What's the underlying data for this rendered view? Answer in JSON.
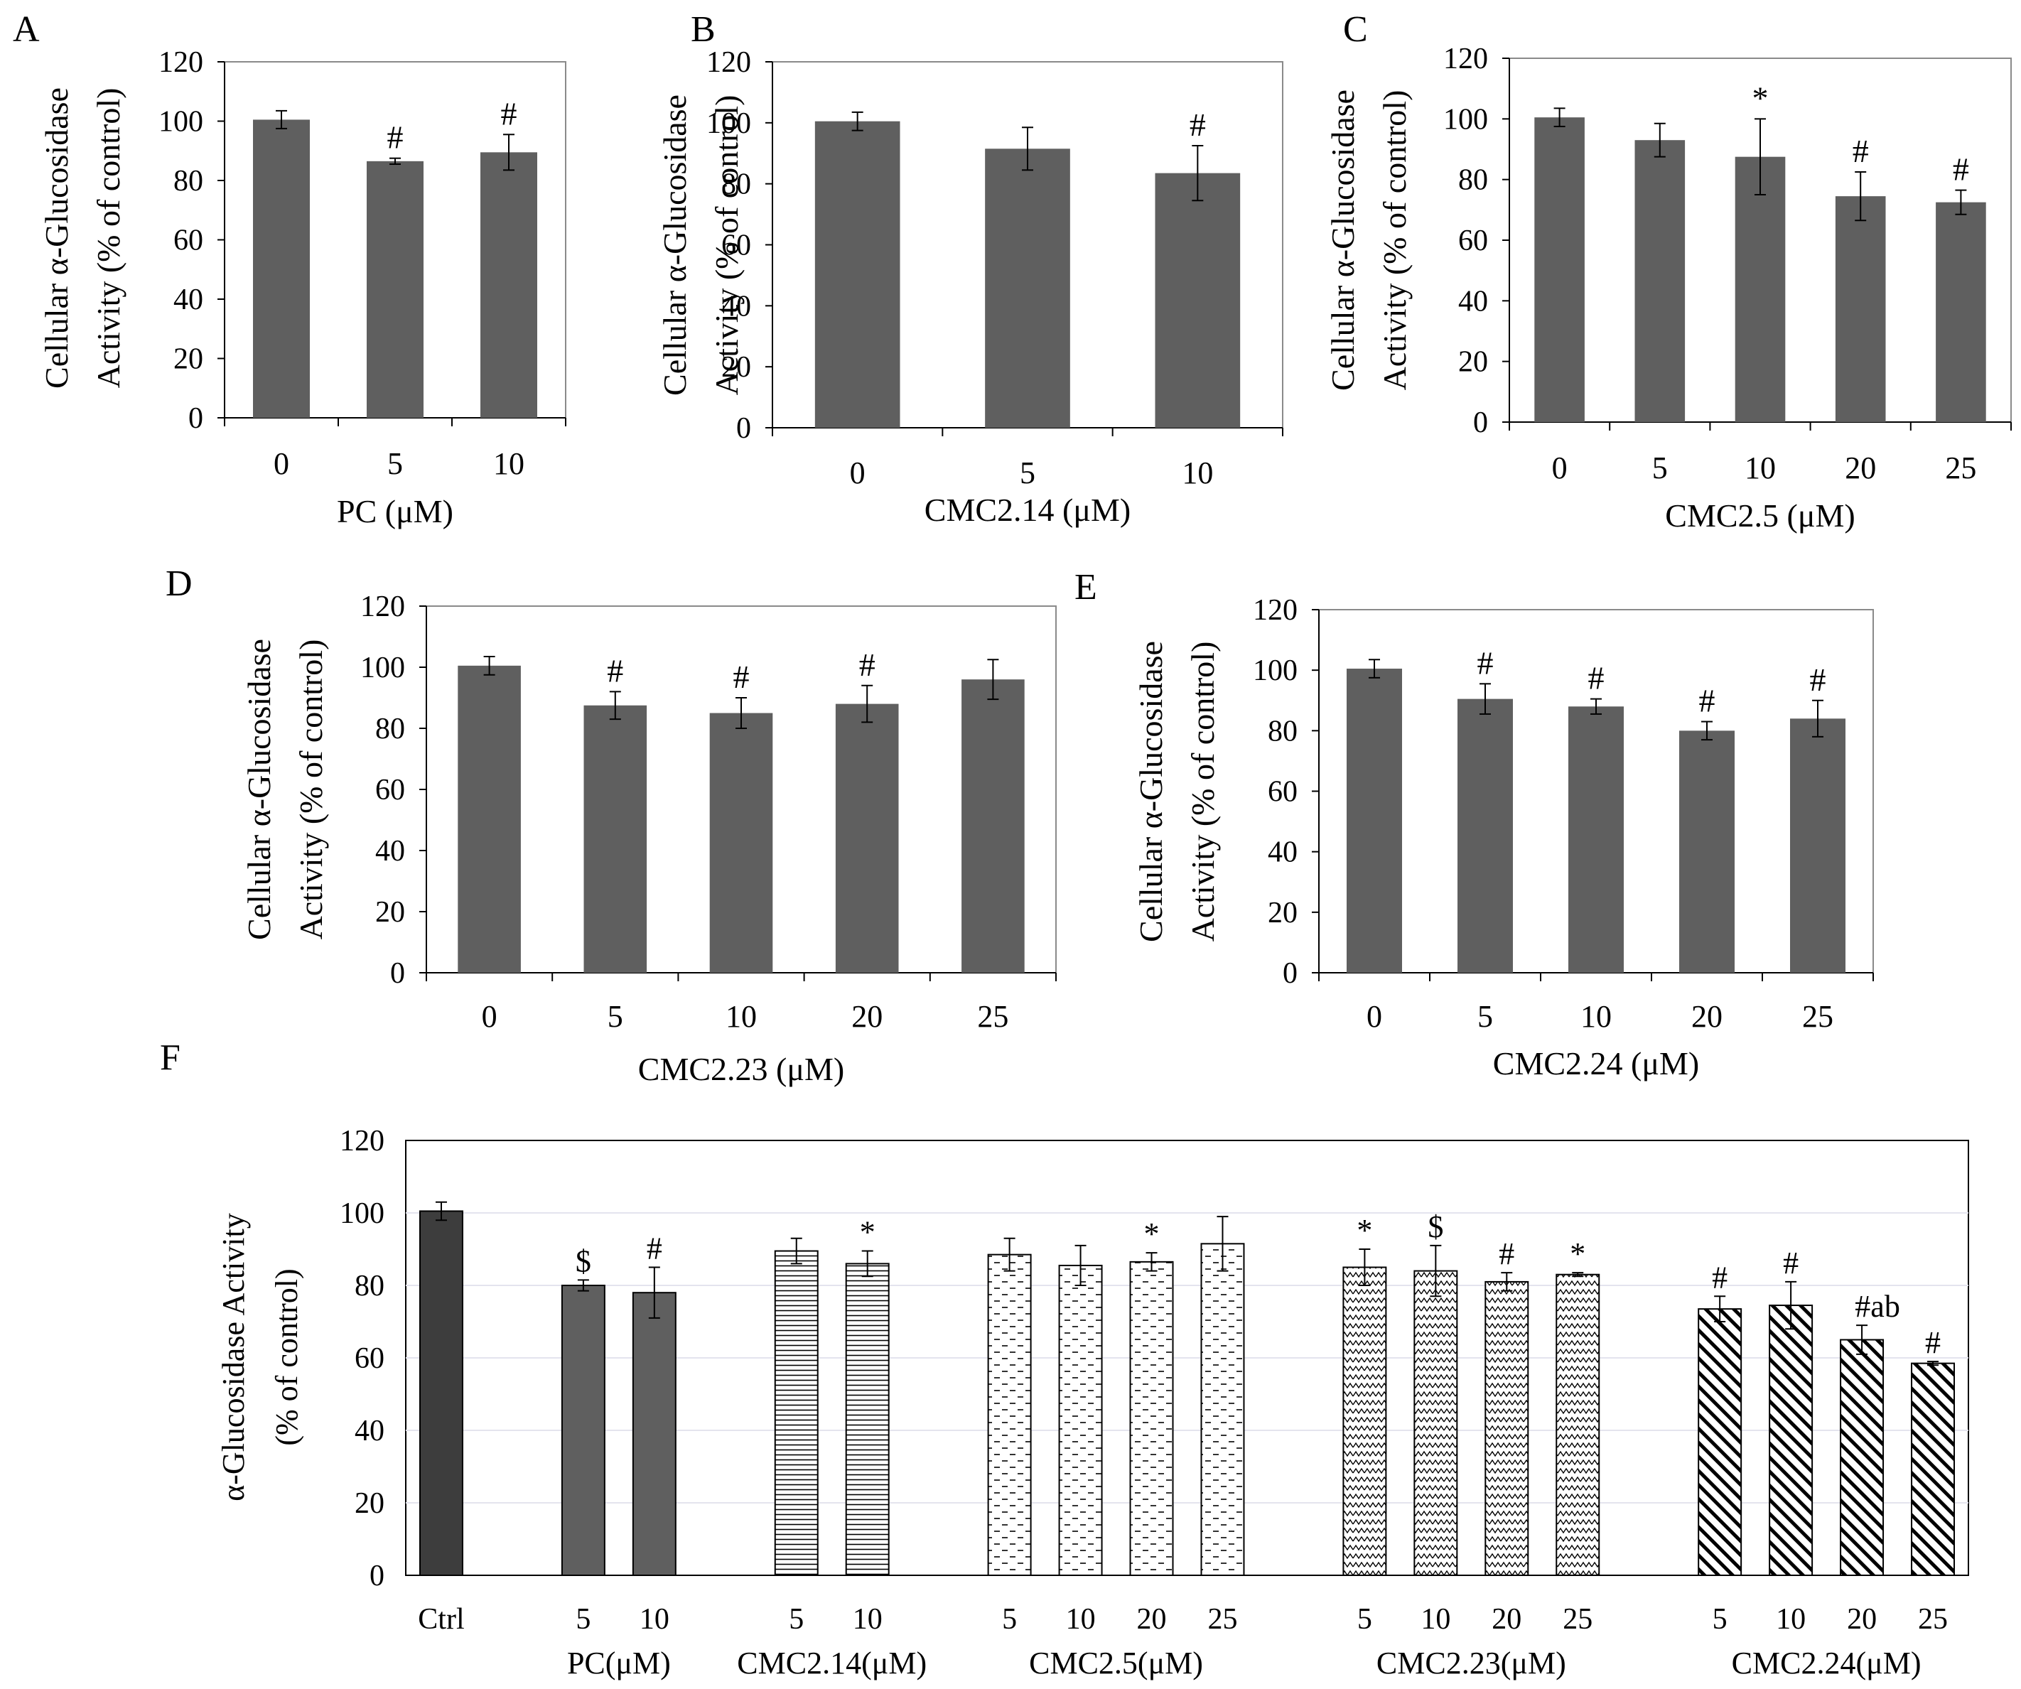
{
  "colors": {
    "bar": "#5f5f5f",
    "ctrl_bar": "#3d3d3d",
    "axis": "#000000",
    "frame": "#8a8a8a",
    "hatch": "#000000"
  },
  "chart_data": [
    {
      "id": "A",
      "type": "bar",
      "panel_label": "A",
      "xlabel": "PC (μM)",
      "ylabel_line1": "Cellular α-Glucosidase",
      "ylabel_line2": "Activity  (% of control)",
      "ylim": [
        0,
        120
      ],
      "yticks": [
        0,
        20,
        40,
        60,
        80,
        100,
        120
      ],
      "categories": [
        "0",
        "5",
        "10"
      ],
      "values": [
        100.5,
        86.5,
        89.5
      ],
      "errors": [
        3,
        1,
        6
      ],
      "annotations": [
        "",
        "#",
        "#"
      ]
    },
    {
      "id": "B",
      "type": "bar",
      "panel_label": "B",
      "xlabel": "CMC2.14 (μM)",
      "ylabel_line1": "Cellular α-Glucosidase",
      "ylabel_line2": "Activity  (% of control)",
      "ylim": [
        0,
        120
      ],
      "yticks": [
        0,
        20,
        40,
        60,
        80,
        100,
        120
      ],
      "categories": [
        "0",
        "5",
        "10"
      ],
      "values": [
        100.5,
        91.5,
        83.5
      ],
      "errors": [
        3,
        7,
        9
      ],
      "annotations": [
        "",
        "",
        "#"
      ]
    },
    {
      "id": "C",
      "type": "bar",
      "panel_label": "C",
      "xlabel": "CMC2.5 (μM)",
      "ylabel_line1": "Cellular α-Glucosidase",
      "ylabel_line2": "Activity  (% of control)",
      "ylim": [
        0,
        120
      ],
      "yticks": [
        0,
        20,
        40,
        60,
        80,
        100,
        120
      ],
      "categories": [
        "0",
        "5",
        "10",
        "20",
        "25"
      ],
      "values": [
        100.5,
        93,
        87.5,
        74.5,
        72.5
      ],
      "errors": [
        3,
        5.5,
        12.5,
        8,
        4
      ],
      "annotations": [
        "",
        "",
        "*",
        "#",
        "#"
      ]
    },
    {
      "id": "D",
      "type": "bar",
      "panel_label": "D",
      "xlabel": "CMC2.23 (μM)",
      "ylabel_line1": "Cellular α-Glucosidase",
      "ylabel_line2": "Activity  (% of control)",
      "ylim": [
        0,
        120
      ],
      "yticks": [
        0,
        20,
        40,
        60,
        80,
        100,
        120
      ],
      "categories": [
        "0",
        "5",
        "10",
        "20",
        "25"
      ],
      "values": [
        100.5,
        87.5,
        85,
        88,
        96
      ],
      "errors": [
        3,
        4.5,
        5,
        6,
        6.5
      ],
      "annotations": [
        "",
        "#",
        "#",
        "#",
        ""
      ]
    },
    {
      "id": "E",
      "type": "bar",
      "panel_label": "E",
      "xlabel": "CMC2.24 (μM)",
      "ylabel_line1": "Cellular α-Glucosidase",
      "ylabel_line2": "Activity  (% of control)",
      "ylim": [
        0,
        120
      ],
      "yticks": [
        0,
        20,
        40,
        60,
        80,
        100,
        120
      ],
      "categories": [
        "0",
        "5",
        "10",
        "20",
        "25"
      ],
      "values": [
        100.5,
        90.5,
        88,
        80,
        84
      ],
      "errors": [
        3,
        5,
        2.5,
        3,
        6
      ],
      "annotations": [
        "",
        "#",
        "#",
        "#",
        "#"
      ]
    },
    {
      "id": "F",
      "type": "bar",
      "panel_label": "F",
      "ylabel_line1": "α-Glucosidase Activity",
      "ylabel_line2": "(% of control)",
      "ylim": [
        0,
        120
      ],
      "yticks": [
        0,
        20,
        40,
        60,
        80,
        100,
        120
      ],
      "groups": [
        {
          "label": "",
          "ticks": [
            "Ctrl"
          ],
          "values": [
            100.5
          ],
          "errors": [
            2.5
          ],
          "annotations": [
            ""
          ],
          "pattern": "ctrl"
        },
        {
          "label": "PC(μM)",
          "ticks": [
            "5",
            "10"
          ],
          "values": [
            80,
            78
          ],
          "errors": [
            1.5,
            7
          ],
          "annotations": [
            "$",
            "#"
          ],
          "pattern": "solid"
        },
        {
          "label": "CMC2.14(μM)",
          "ticks": [
            "5",
            "10"
          ],
          "values": [
            89.5,
            86
          ],
          "errors": [
            3.5,
            3.5
          ],
          "annotations": [
            "",
            "*"
          ],
          "pattern": "hlines"
        },
        {
          "label": "CMC2.5(μM)",
          "ticks": [
            "5",
            "10",
            "20",
            "25"
          ],
          "values": [
            88.5,
            85.5,
            86.5,
            91.5
          ],
          "errors": [
            4.5,
            5.5,
            2.5,
            7.5
          ],
          "annotations": [
            "",
            "",
            "*",
            ""
          ],
          "pattern": "dashes"
        },
        {
          "label": "CMC2.23(μM)",
          "ticks": [
            "5",
            "10",
            "20",
            "25"
          ],
          "values": [
            85,
            84,
            81,
            83
          ],
          "errors": [
            5,
            7,
            2.5,
            0.5
          ],
          "annotations": [
            "*",
            "$",
            "#",
            "*"
          ],
          "pattern": "zigzag"
        },
        {
          "label": "CMC2.24(μM)",
          "ticks": [
            "5",
            "10",
            "20",
            "25"
          ],
          "values": [
            73.5,
            74.5,
            65,
            58.5
          ],
          "errors": [
            3.5,
            6.5,
            4,
            0.5
          ],
          "annotations": [
            "#",
            "#",
            "#ab",
            "#"
          ],
          "pattern": "diag"
        }
      ]
    }
  ]
}
